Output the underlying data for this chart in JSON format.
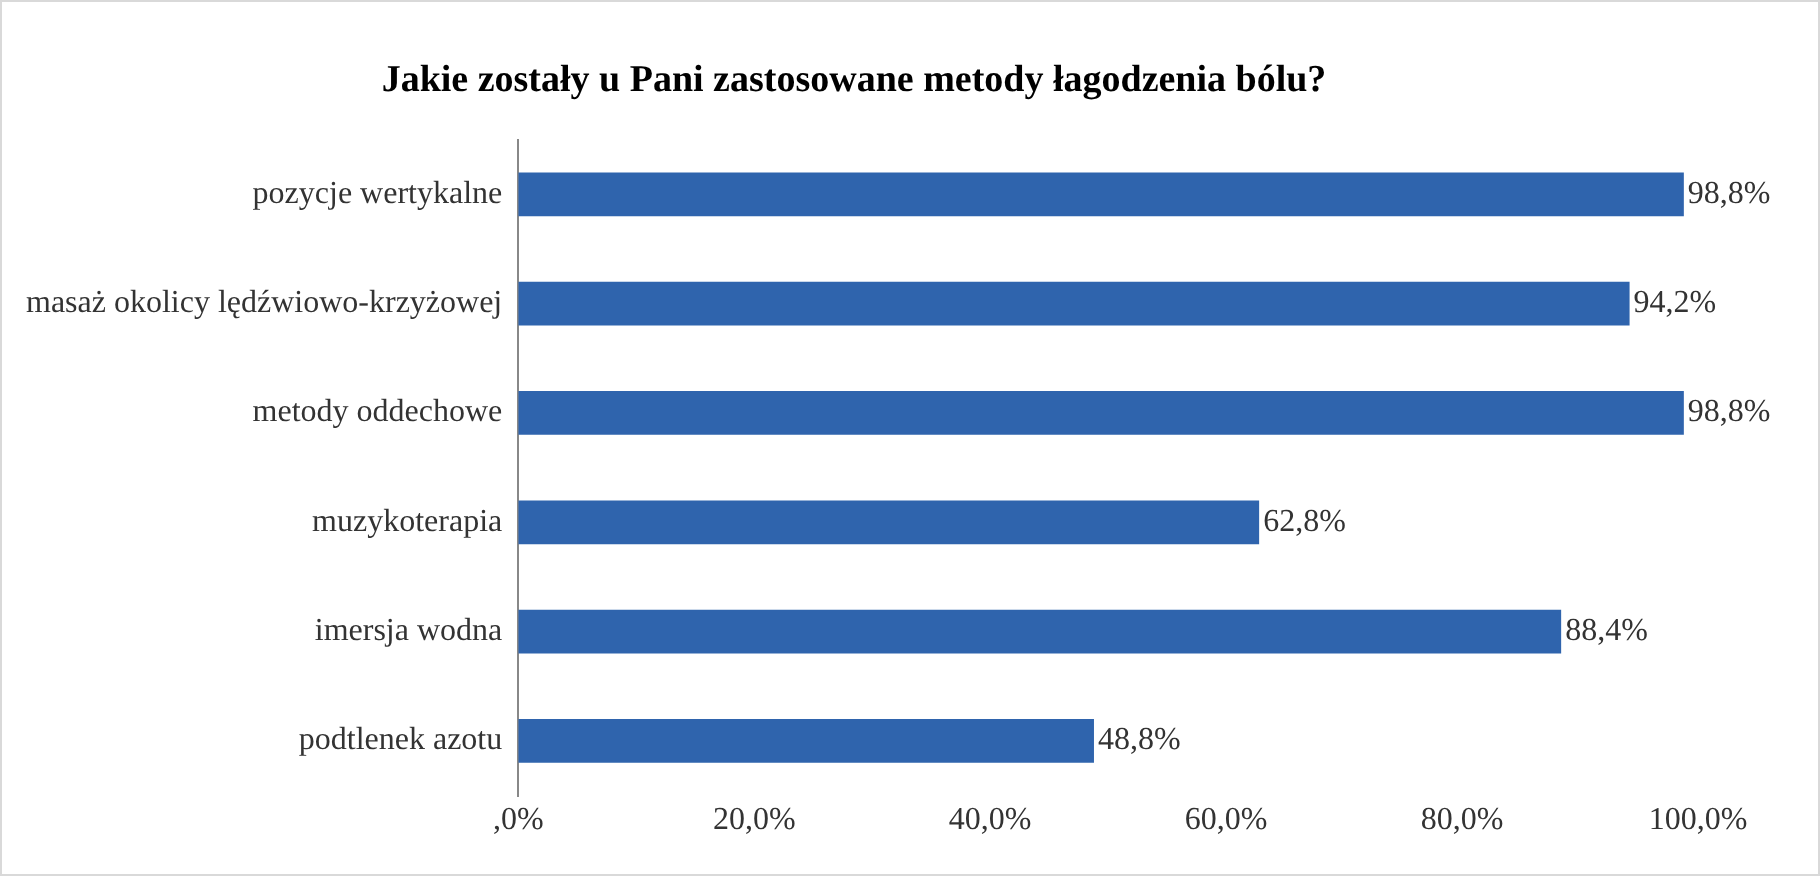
{
  "chart_data": {
    "type": "bar",
    "orientation": "horizontal",
    "title": "Jakie zostały u Pani zastosowane metody łagodzenia bólu?",
    "categories": [
      "pozycje wertykalne",
      "masaż okolicy lędźwiowo-krzyżowej",
      "metody oddechowe",
      "muzykoterapia",
      "imersja wodna",
      "podtlenek azotu"
    ],
    "values": [
      98.8,
      94.2,
      98.8,
      62.8,
      88.4,
      48.8
    ],
    "value_labels": [
      "98,8%",
      "94,2%",
      "98,8%",
      "62,8%",
      "88,4%",
      "48,8%"
    ],
    "color": "#2f64ad",
    "xlim": [
      0,
      100
    ],
    "xticks": [
      {
        "value": 0,
        "label": ",0%"
      },
      {
        "value": 20,
        "label": "20,0%"
      },
      {
        "value": 40,
        "label": "40,0%"
      },
      {
        "value": 60,
        "label": "60,0%"
      },
      {
        "value": 80,
        "label": "80,0%"
      },
      {
        "value": 100,
        "label": "100,0%"
      }
    ],
    "grid": false,
    "legend": false
  }
}
